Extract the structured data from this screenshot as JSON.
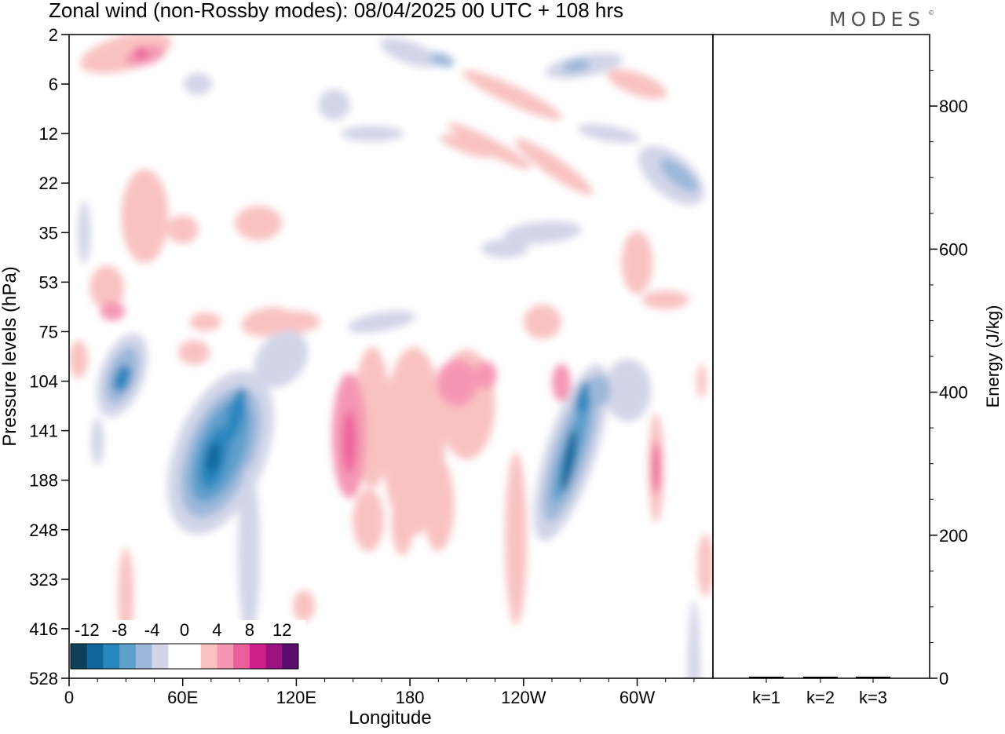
{
  "title": "Zonal wind (non-Rossby modes):  08/04/2025  00 UTC  + 108 hrs",
  "brand": {
    "text": "MODES",
    "mark": "©"
  },
  "colors": {
    "negative": [
      "#0e3f5c",
      "#10679a",
      "#2a86bf",
      "#5e9fcc",
      "#9cb8da",
      "#d2d5e8"
    ],
    "neutral": "#ffffff",
    "positive": [
      "#f9c2c2",
      "#f597b3",
      "#ec5f9a",
      "#cf1f8a",
      "#9b1281",
      "#5b0d6b"
    ]
  },
  "chart_data": [
    {
      "type": "heatmap",
      "xlabel": "Longitude",
      "ylabel": "Pressure levels (hPa)",
      "x_ticks": [
        "0",
        "60E",
        "120E",
        "180",
        "120W",
        "60W"
      ],
      "x_tick_degrees": [
        0,
        60,
        120,
        180,
        240,
        300
      ],
      "xlim": [
        0,
        340
      ],
      "y_ticks": [
        "2",
        "6",
        "12",
        "22",
        "35",
        "53",
        "75",
        "104",
        "141",
        "188",
        "248",
        "323",
        "416",
        "528"
      ],
      "colorbar": {
        "labels": [
          "-12",
          "-8",
          "-4",
          "0",
          "4",
          "8",
          "12"
        ],
        "label_levels": [
          -12,
          -8,
          -4,
          0,
          4,
          8,
          12
        ],
        "levels": [
          -14,
          -12,
          -10,
          -8,
          -6,
          -4,
          -2,
          2,
          4,
          6,
          8,
          10,
          12,
          14
        ]
      },
      "features": [
        {
          "lon": 28,
          "lev": 104,
          "value": -10,
          "kind": "core"
        },
        {
          "lon": 76,
          "lev": 160,
          "value": -12,
          "kind": "core"
        },
        {
          "lon": 87,
          "lev": 128,
          "value": -9,
          "kind": "core"
        },
        {
          "lon": 148,
          "lev": 145,
          "value": 8,
          "kind": "core"
        },
        {
          "lon": 205,
          "lev": 104,
          "value": 6,
          "kind": "core"
        },
        {
          "lon": 264,
          "lev": 165,
          "value": -12,
          "kind": "core"
        },
        {
          "lon": 271,
          "lev": 115,
          "value": -9,
          "kind": "core"
        },
        {
          "lon": 310,
          "lev": 170,
          "value": 7,
          "kind": "core"
        },
        {
          "lon": 318,
          "lev": 18,
          "value": -7,
          "kind": "core"
        },
        {
          "lon": 38,
          "lev": 3,
          "value": 7,
          "kind": "core"
        },
        {
          "lon": 234,
          "lev": 20,
          "value": 6,
          "kind": "core"
        }
      ]
    },
    {
      "type": "bar",
      "categories": [
        "k=1",
        "k=2",
        "k=3"
      ],
      "values": [
        2,
        2,
        1
      ],
      "ylabel": "Energy (J/kg)",
      "ylim": [
        0,
        900
      ],
      "y_ticks": [
        0,
        200,
        400,
        600,
        800
      ]
    }
  ]
}
